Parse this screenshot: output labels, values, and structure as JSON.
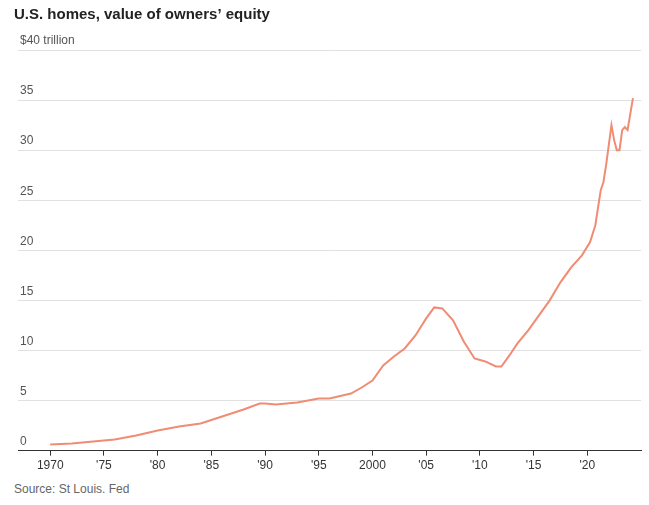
{
  "chart_data": {
    "type": "line",
    "title": "U.S. homes, value of owners’ equity",
    "source": "Source: St Louis. Fed",
    "color": "#f08b74",
    "grid": true,
    "x": [
      1970,
      1972,
      1974,
      1976,
      1978,
      1980,
      1982,
      1984,
      1986,
      1988,
      1989.5,
      1990,
      1991,
      1993,
      1995,
      1996,
      1998,
      1999,
      2000,
      2001,
      2002,
      2003,
      2004,
      2005,
      2005.75,
      2006.5,
      2007.5,
      2008.5,
      2009.5,
      2010.5,
      2011.5,
      2012,
      2012.75,
      2013.5,
      2014.5,
      2015.5,
      2016.5,
      2017.5,
      2018.5,
      2019.5,
      2020.25,
      2020.75,
      2021.25,
      2021.5,
      2021.75,
      2022.25,
      2022.5,
      2022.75,
      2023,
      2023.25,
      2023.5,
      2023.75,
      2024.25
    ],
    "values": [
      0.6,
      0.7,
      0.9,
      1.1,
      1.5,
      2.0,
      2.4,
      2.7,
      3.4,
      4.1,
      4.7,
      4.7,
      4.6,
      4.8,
      5.2,
      5.2,
      5.7,
      6.3,
      7.0,
      8.5,
      9.4,
      10.2,
      11.5,
      13.2,
      14.3,
      14.2,
      13.0,
      10.9,
      9.2,
      8.9,
      8.4,
      8.4,
      9.5,
      10.7,
      12.0,
      13.5,
      15.0,
      16.8,
      18.3,
      19.5,
      20.8,
      22.5,
      26.0,
      26.8,
      28.5,
      32.5,
      31.0,
      30.0,
      30.0,
      32.0,
      32.3,
      32.0,
      35.2
    ],
    "xlim": [
      1967,
      2025
    ],
    "xticks": [
      1970,
      {
        "value": 1975,
        "label": "'75"
      },
      {
        "value": 1980,
        "label": "'80"
      },
      {
        "value": 1985,
        "label": "'85"
      },
      {
        "value": 1990,
        "label": "'90"
      },
      {
        "value": 1995,
        "label": "'95"
      },
      2000,
      {
        "value": 2005,
        "label": "'05"
      },
      {
        "value": 2010,
        "label": "'10"
      },
      {
        "value": 2015,
        "label": "'15"
      },
      {
        "value": 2020,
        "label": "'20"
      }
    ],
    "ylim": [
      0,
      40
    ],
    "yticks": [
      0,
      5,
      10,
      15,
      20,
      25,
      30,
      35,
      {
        "value": 40,
        "label": "$40 trillion"
      }
    ]
  }
}
